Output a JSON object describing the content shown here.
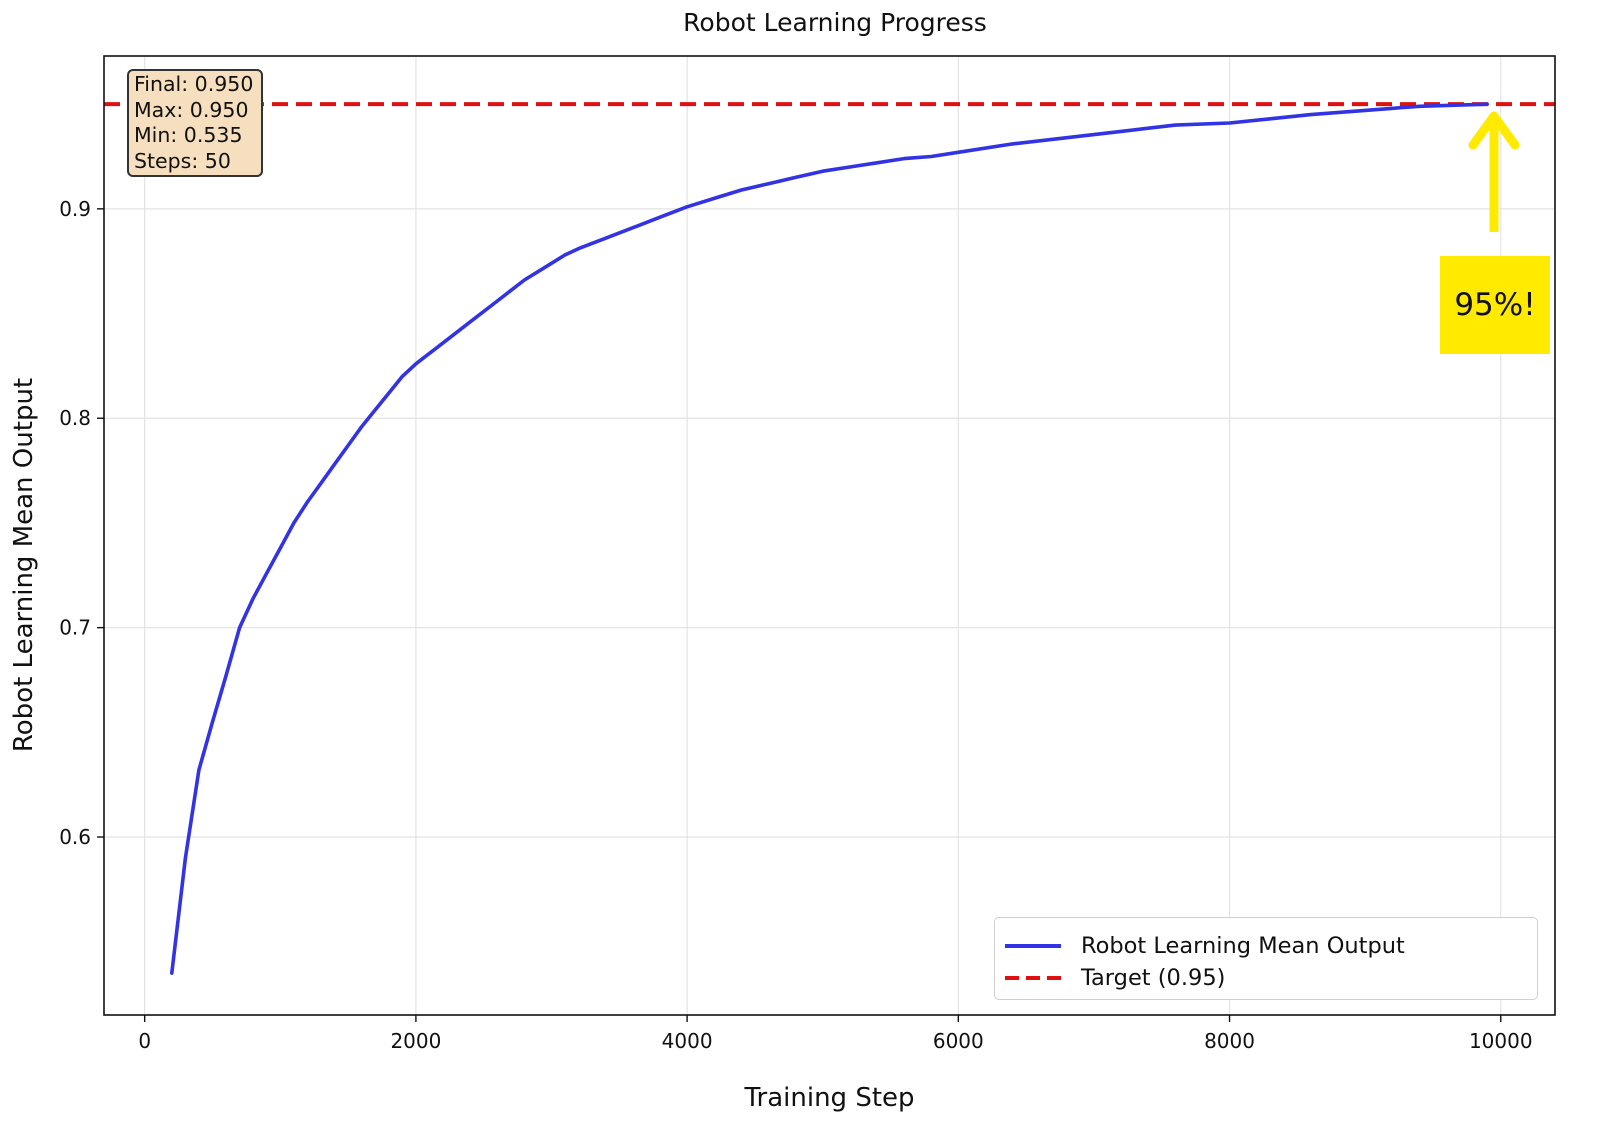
{
  "chart_data": {
    "type": "line",
    "title": "Robot Learning Progress",
    "xlabel": "Training Step",
    "ylabel": "Robot Learning Mean Output",
    "xlim": [
      -300,
      10400
    ],
    "ylim": [
      0.515,
      0.973
    ],
    "xticks": [
      0,
      2000,
      4000,
      6000,
      8000,
      10000
    ],
    "yticks": [
      0.6,
      0.7,
      0.8,
      0.9
    ],
    "grid": true,
    "legend_position": "lower-right",
    "series": [
      {
        "name": "Robot Learning Mean Output",
        "color": "#3333e6",
        "x": [
          200,
          300,
          400,
          500,
          600,
          700,
          800,
          900,
          1000,
          1100,
          1200,
          1300,
          1400,
          1500,
          1600,
          1700,
          1800,
          1900,
          2000,
          2200,
          2400,
          2600,
          2800,
          3000,
          3100,
          3200,
          3400,
          3600,
          3800,
          4000,
          4200,
          4400,
          4600,
          4800,
          5000,
          5200,
          5400,
          5600,
          5800,
          6000,
          6400,
          6800,
          7200,
          7600,
          8000,
          8300,
          8600,
          9000,
          9400,
          9900
        ],
        "y": [
          0.535,
          0.59,
          0.632,
          0.655,
          0.677,
          0.7,
          0.714,
          0.726,
          0.738,
          0.75,
          0.76,
          0.769,
          0.778,
          0.787,
          0.796,
          0.804,
          0.812,
          0.82,
          0.826,
          0.836,
          0.846,
          0.856,
          0.866,
          0.874,
          0.878,
          0.881,
          0.886,
          0.891,
          0.896,
          0.901,
          0.905,
          0.909,
          0.912,
          0.915,
          0.918,
          0.92,
          0.922,
          0.924,
          0.925,
          0.927,
          0.931,
          0.934,
          0.937,
          0.94,
          0.941,
          0.943,
          0.945,
          0.947,
          0.949,
          0.95
        ]
      },
      {
        "name": "Target (0.95)",
        "color": "#e01010",
        "style": "dashed",
        "y_constant": 0.95
      }
    ],
    "stats_box": {
      "final": "Final: 0.950",
      "max": "Max: 0.950",
      "min": "Min: 0.535",
      "steps": "Steps: 50"
    },
    "annotation": {
      "text": "95%!",
      "color": "#ffea00"
    }
  }
}
